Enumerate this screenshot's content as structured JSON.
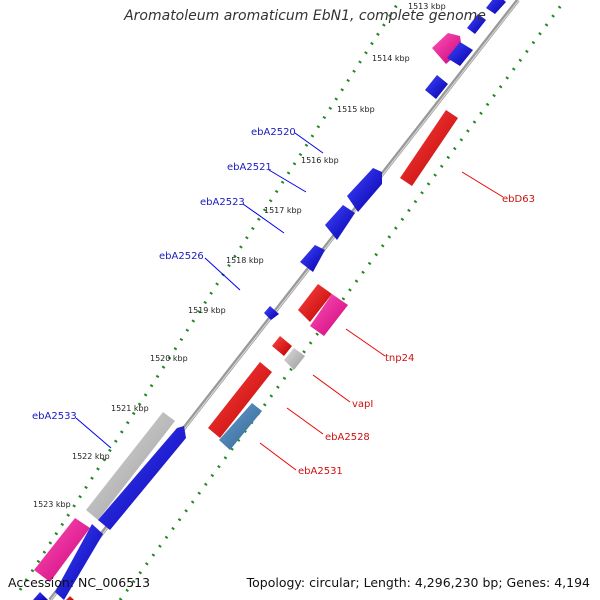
{
  "title": "Aromatoleum aromaticum EbN1, complete genome",
  "footer": {
    "accession": "Accession: NC_006513",
    "summary": "Topology: circular; Length: 4,296,230 bp; Genes: 4,194"
  },
  "kbp_labels": [
    "1513 kbp",
    "1514 kbp",
    "1515 kbp",
    "1516 kbp",
    "1517 kbp",
    "1518 kbp",
    "1519 kbp",
    "1520 kbp",
    "1521 kbp",
    "1522 kbp",
    "1523 kbp"
  ],
  "gene_labels_left": [
    "ebA2520",
    "ebA2521",
    "ebA2523",
    "ebA2526",
    "ebA2533"
  ],
  "gene_labels_right": [
    "ebD63",
    "tnp24",
    "vapI",
    "ebA2528",
    "ebA2531"
  ],
  "colors": {
    "forward": "#0000ee",
    "reverse": "#ee0000",
    "pink": "#ee1188",
    "gray": "#bbbbbb",
    "steelblue": "#4682b4",
    "left_label": "#1a1ac0",
    "right_label": "#cc1111",
    "dots": "#228822",
    "axis": "#888888"
  }
}
